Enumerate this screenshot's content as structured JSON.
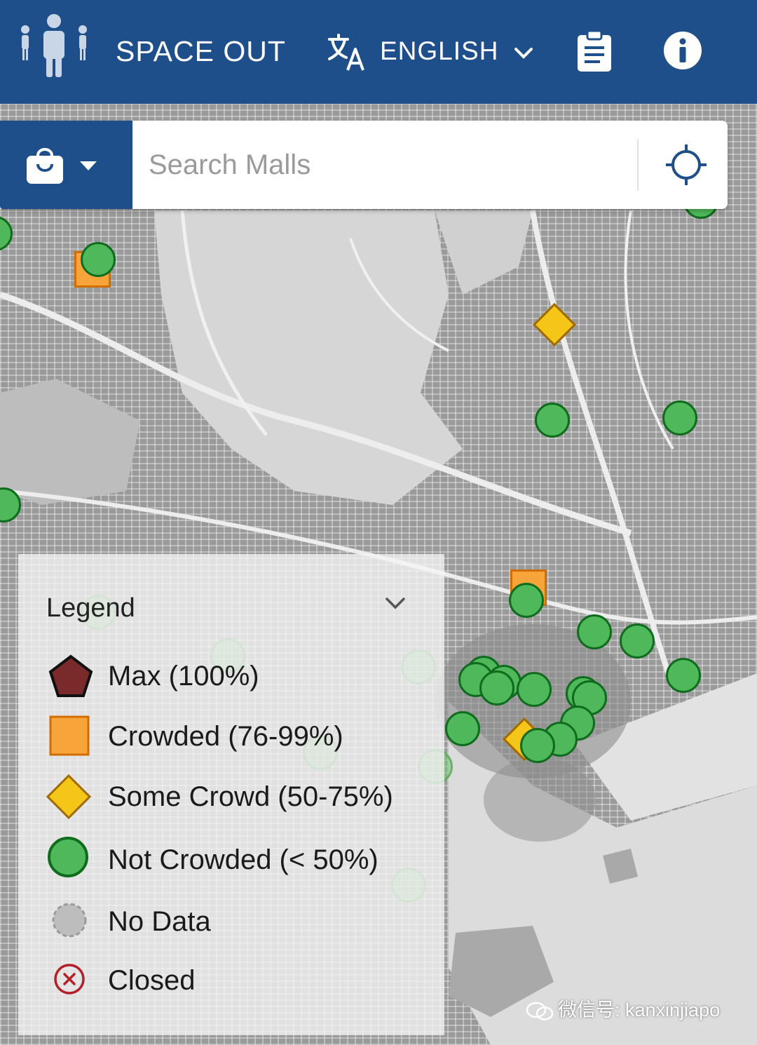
{
  "header": {
    "app_title": "SPACE OUT",
    "language": "ENGLISH",
    "icons": [
      "people-logo-icon",
      "translate-icon",
      "chevron-down-icon",
      "clipboard-icon",
      "info-icon"
    ]
  },
  "search": {
    "category_icon": "shopping-bag-icon",
    "placeholder": "Search Malls",
    "locate_icon": "crosshair-icon"
  },
  "legend": {
    "title": "Legend",
    "items": [
      {
        "label": "Max (100%)",
        "symbol": "pentagon",
        "color": "#7a2a2a"
      },
      {
        "label": "Crowded (76-99%)",
        "symbol": "square",
        "color": "#f7a53a"
      },
      {
        "label": "Some Crowd (50-75%)",
        "symbol": "diamond",
        "color": "#f5c518"
      },
      {
        "label": "Not Crowded (< 50%)",
        "symbol": "circle",
        "color": "#4fb85a"
      },
      {
        "label": "No Data",
        "symbol": "grey-circle",
        "color": "#bdbdbd"
      },
      {
        "label": "Closed",
        "symbol": "x-circle",
        "color": "#b3202a"
      }
    ]
  },
  "watermark": "微信号: kanxinjiapo",
  "colors": {
    "header": "#1f4f8b",
    "not_crowded": "#4fb85a",
    "crowded": "#f7a53a",
    "some_crowd": "#f5c518"
  }
}
